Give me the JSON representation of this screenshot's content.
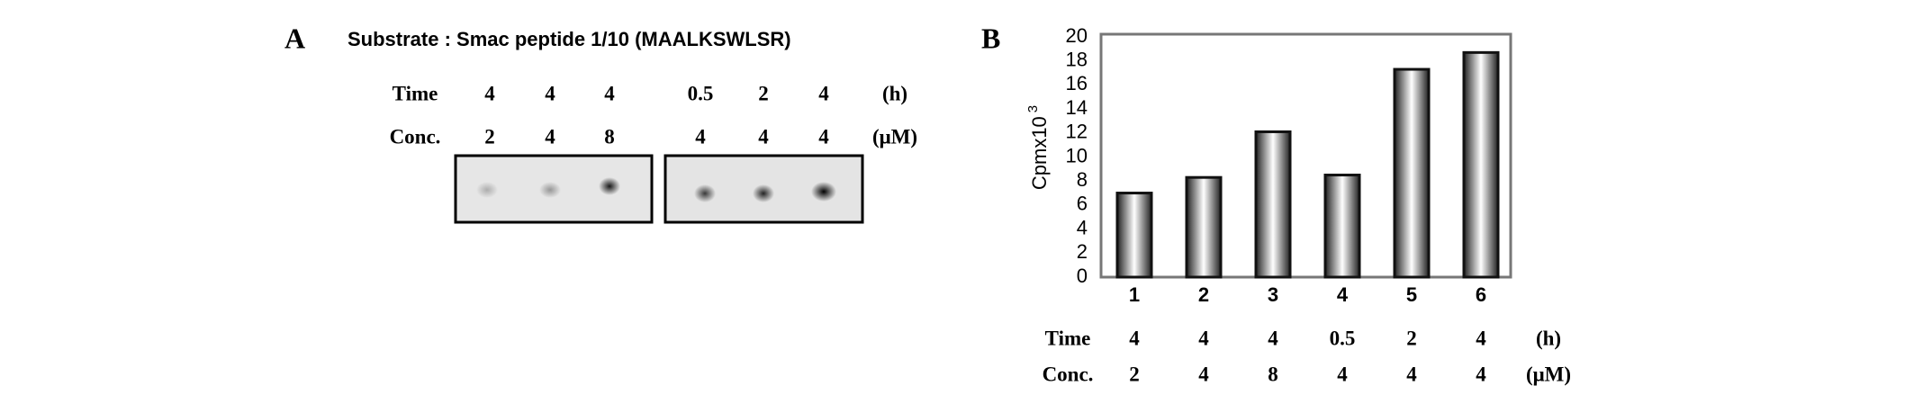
{
  "panel_a": {
    "label": "A",
    "title": "Substrate : Smac peptide 1/10 (MAALKSWLSR)",
    "time_label": "Time",
    "times": [
      "4",
      "4",
      "4",
      "0.5",
      "2",
      "4"
    ],
    "time_unit": "(h)",
    "conc_label": "Conc.",
    "concs": [
      "2",
      "4",
      "8",
      "4",
      "4",
      "4"
    ],
    "conc_unit": "(μM)"
  },
  "panel_b": {
    "label": "B",
    "time_label": "Time",
    "times": [
      "4",
      "4",
      "4",
      "0.5",
      "2",
      "4"
    ],
    "time_unit": "(h)",
    "conc_label": "Conc.",
    "concs": [
      "2",
      "4",
      "8",
      "4",
      "4",
      "4"
    ],
    "conc_unit": "(μM)"
  },
  "chart_data": {
    "type": "bar",
    "y_label": {
      "text": "Cpmx10",
      "superscript": "3"
    },
    "categories": [
      "1",
      "2",
      "3",
      "4",
      "5",
      "6"
    ],
    "values": [
      7,
      8.3,
      12.1,
      8.5,
      17.3,
      18.7
    ],
    "color": "#111111",
    "ylim": [
      0,
      20
    ],
    "yticks": [
      0,
      2,
      4,
      6,
      8,
      10,
      12,
      14,
      16,
      18,
      20
    ],
    "grid": false
  }
}
